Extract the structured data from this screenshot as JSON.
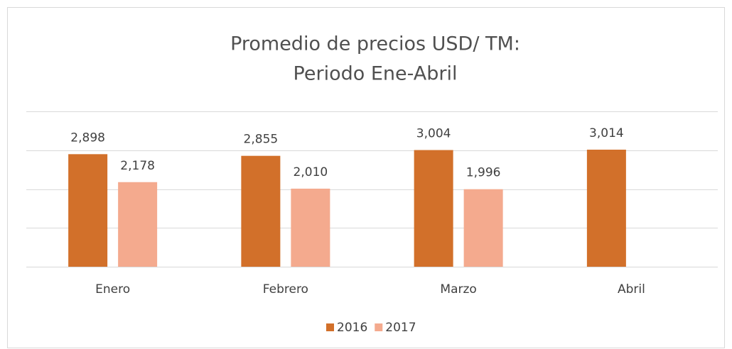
{
  "chart_data": {
    "type": "bar",
    "title": [
      "Promedio de precios USD/ TM:",
      "Periodo Ene-Abril"
    ],
    "categories": [
      "Enero",
      "Febrero",
      "Marzo",
      "Abril"
    ],
    "series": [
      {
        "name": "2016",
        "color": "#d2702a",
        "values": [
          2898,
          2855,
          3004,
          3014
        ],
        "value_labels": [
          "2,898",
          "2,855",
          "3,004",
          "3,014"
        ]
      },
      {
        "name": "2017",
        "color": "#f4aa8e",
        "values": [
          2178,
          2010,
          1996,
          null
        ],
        "value_labels": [
          "2,178",
          "2,010",
          "1,996",
          null
        ]
      }
    ],
    "ylim": [
      0,
      4000
    ],
    "yticks": [
      0,
      1000,
      2000,
      3000,
      4000
    ],
    "grid": true,
    "legend": "bottom"
  }
}
